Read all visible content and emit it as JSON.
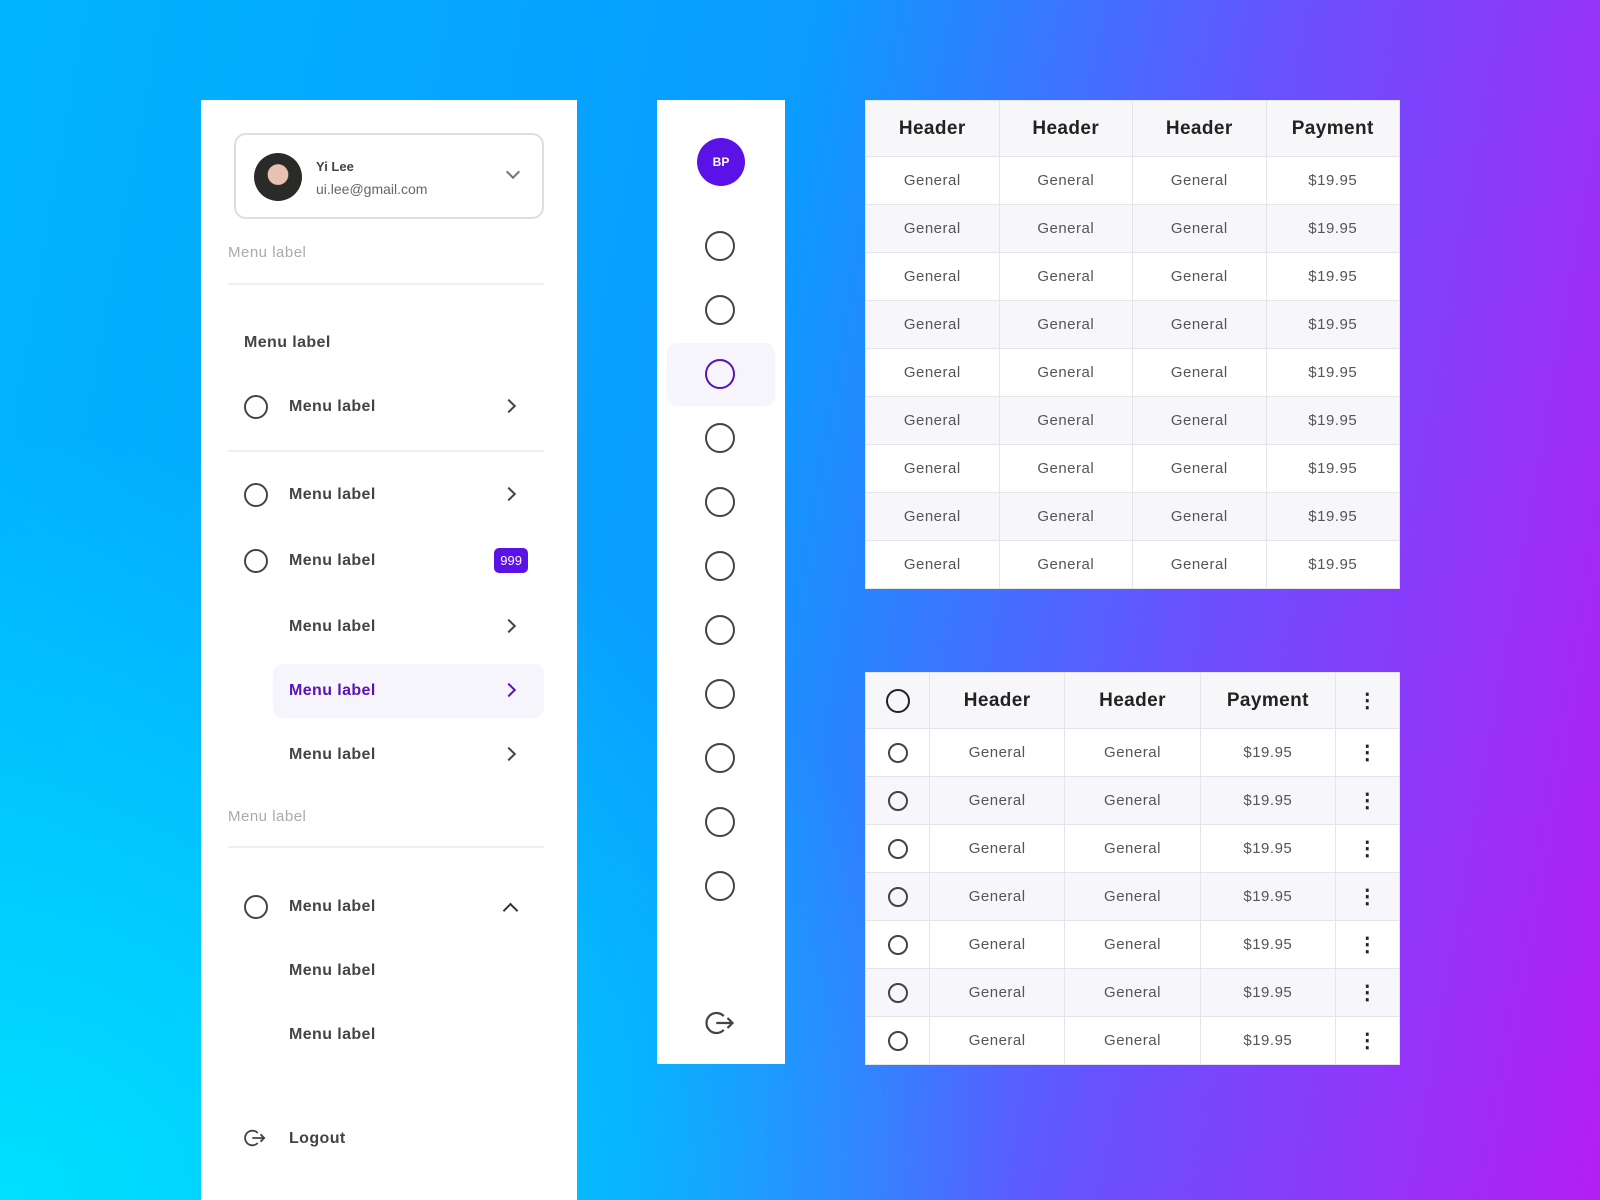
{
  "sidebar": {
    "profile": {
      "name": "Yi Lee",
      "email": "ui.lee@gmail.com"
    },
    "section_1": "Menu label",
    "group_title": "Menu label",
    "items": [
      "Menu label",
      "Menu label",
      "Menu label",
      "Menu label",
      "Menu label",
      "Menu label"
    ],
    "badge": "999",
    "section_2": "Menu label",
    "expanded": {
      "label": "Menu label",
      "children": [
        "Menu label",
        "Menu label"
      ]
    },
    "logout": "Logout"
  },
  "rail": {
    "avatar_initials": "BP",
    "item_count": 11,
    "active_index": 2
  },
  "colors": {
    "accent": "#5a12e6",
    "active_text": "#5a12b8"
  },
  "table1": {
    "headers": [
      "Header",
      "Header",
      "Header",
      "Payment"
    ],
    "rows": [
      [
        "General",
        "General",
        "General",
        "$19.95"
      ],
      [
        "General",
        "General",
        "General",
        "$19.95"
      ],
      [
        "General",
        "General",
        "General",
        "$19.95"
      ],
      [
        "General",
        "General",
        "General",
        "$19.95"
      ],
      [
        "General",
        "General",
        "General",
        "$19.95"
      ],
      [
        "General",
        "General",
        "General",
        "$19.95"
      ],
      [
        "General",
        "General",
        "General",
        "$19.95"
      ],
      [
        "General",
        "General",
        "General",
        "$19.95"
      ],
      [
        "General",
        "General",
        "General",
        "$19.95"
      ]
    ]
  },
  "table2": {
    "headers": [
      "Header",
      "Header",
      "Payment"
    ],
    "rows": [
      [
        "General",
        "General",
        "$19.95"
      ],
      [
        "General",
        "General",
        "$19.95"
      ],
      [
        "General",
        "General",
        "$19.95"
      ],
      [
        "General",
        "General",
        "$19.95"
      ],
      [
        "General",
        "General",
        "$19.95"
      ],
      [
        "General",
        "General",
        "$19.95"
      ],
      [
        "General",
        "General",
        "$19.95"
      ]
    ]
  }
}
